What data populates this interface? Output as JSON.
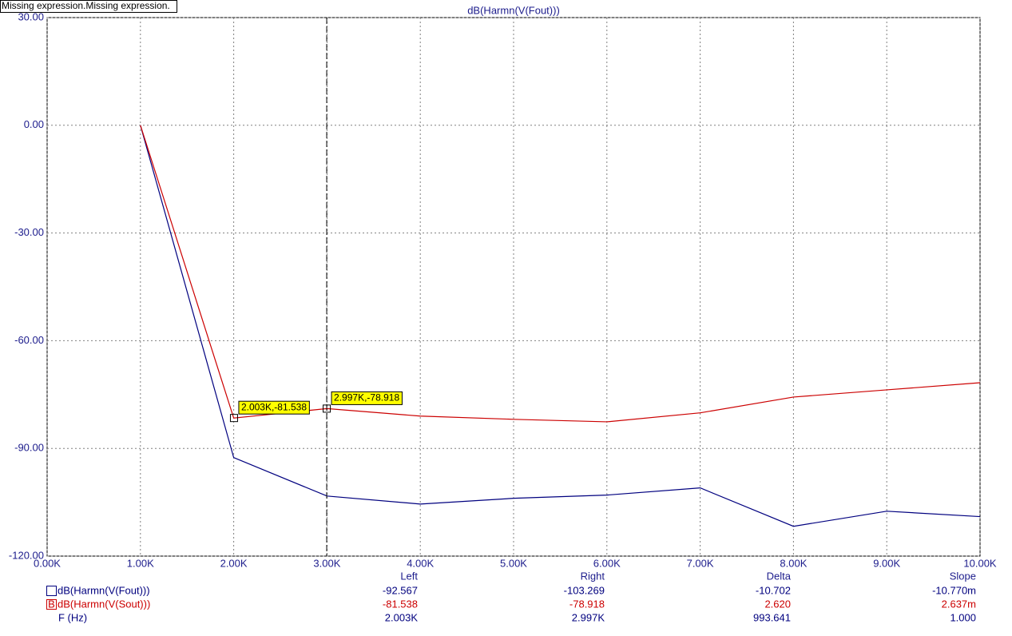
{
  "chart_data": {
    "type": "line",
    "banner": "Missing expression.Missing expression.",
    "title": "dB(Harmn(V(Fout)))",
    "xlabel": "F (Hz)",
    "x": [
      1,
      2,
      3,
      4,
      5,
      6,
      7,
      8,
      9,
      10
    ],
    "series": [
      {
        "name": "dB(Harmn(V(Fout)))",
        "color": "#00007f",
        "values": [
          0,
          -92.567,
          -103.269,
          -105.5,
          -103.9,
          -103.0,
          -101.0,
          -111.7,
          -107.5,
          -109.0
        ]
      },
      {
        "name": "dB(Harmn(V(Sout)))",
        "color": "#cc0000",
        "values": [
          0,
          -81.538,
          -78.918,
          -81.0,
          -81.9,
          -82.6,
          -80.1,
          -75.7,
          -73.7,
          -71.7
        ]
      }
    ],
    "xlim": [
      0,
      10
    ],
    "xticks": [
      {
        "value": 0,
        "label": "0.00K"
      },
      {
        "value": 1,
        "label": "1.00K"
      },
      {
        "value": 2,
        "label": "2.00K"
      },
      {
        "value": 3,
        "label": "3.00K"
      },
      {
        "value": 4,
        "label": "4.00K"
      },
      {
        "value": 5,
        "label": "5.00K"
      },
      {
        "value": 6,
        "label": "6.00K"
      },
      {
        "value": 7,
        "label": "7.00K"
      },
      {
        "value": 8,
        "label": "8.00K"
      },
      {
        "value": 9,
        "label": "9.00K"
      },
      {
        "value": 10,
        "label": "10.00K"
      }
    ],
    "ylim": [
      -120,
      30
    ],
    "yticks": [
      {
        "value": 30,
        "label": "30.00"
      },
      {
        "value": 0,
        "label": "0.00"
      },
      {
        "value": -30,
        "label": "-30.00"
      },
      {
        "value": -60,
        "label": "-60.00"
      },
      {
        "value": -90,
        "label": "-90.00"
      },
      {
        "value": -120,
        "label": "-120.00"
      }
    ],
    "grid": true,
    "annotations": [
      {
        "x": 2.003,
        "y": -81.538,
        "label": "2.003K,-81.538"
      },
      {
        "x": 2.997,
        "y": -78.918,
        "label": "2.997K,-78.918"
      }
    ],
    "legend_markers": [
      "",
      "B"
    ],
    "cursor_table": {
      "columns": [
        "Left",
        "Right",
        "Delta",
        "Slope"
      ],
      "rows": [
        [
          "-92.567",
          "-103.269",
          "-10.702",
          "-10.770m"
        ],
        [
          "-81.538",
          "-78.918",
          "2.620",
          "2.637m"
        ],
        [
          "2.003K",
          "2.997K",
          "993.641",
          "1.000"
        ]
      ]
    }
  }
}
